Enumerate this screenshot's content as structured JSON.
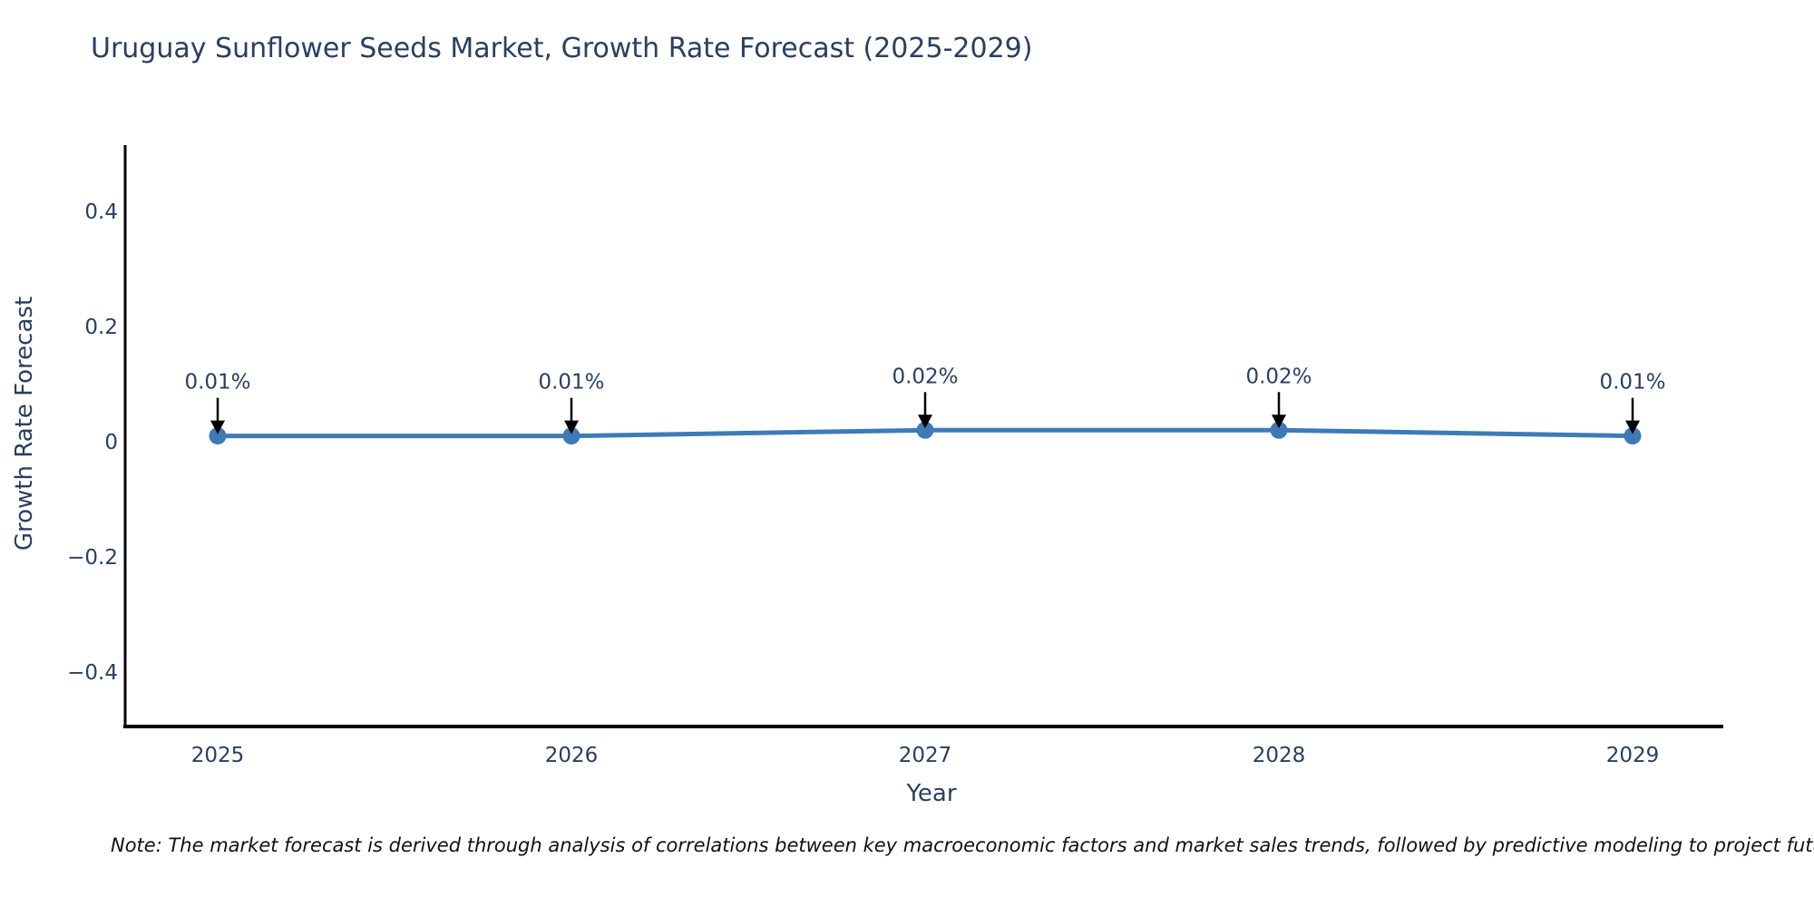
{
  "chart_data": {
    "type": "line",
    "title": "Uruguay Sunflower Seeds Market, Growth Rate Forecast (2025-2029)",
    "xlabel": "Year",
    "ylabel": "Growth Rate Forecast",
    "categories": [
      "2025",
      "2026",
      "2027",
      "2028",
      "2029"
    ],
    "series": [
      {
        "name": "Growth Rate Forecast",
        "values": [
          0.01,
          0.01,
          0.02,
          0.02,
          0.01
        ],
        "point_labels": [
          "0.01%",
          "0.01%",
          "0.02%",
          "0.02%",
          "0.01%"
        ]
      }
    ],
    "yticks": [
      0.4,
      0.2,
      0,
      -0.2,
      -0.4
    ],
    "ytick_labels": [
      "0.4",
      "0.2",
      "0",
      "−0.2",
      "−0.4"
    ],
    "ylim": [
      -0.5,
      0.52
    ],
    "grid": false,
    "legend": false,
    "annotations_have_arrows": true,
    "colors": {
      "line": "#3e7bb6",
      "marker": "#3e7bb6",
      "axis": "#000000",
      "arrow": "#000000",
      "text": "#2a3f5f",
      "note_text": "#111111"
    },
    "note": "Note: The market forecast is derived through analysis of correlations between key macroeconomic factors and market sales trends, followed by predictive modeling to project future sales."
  }
}
